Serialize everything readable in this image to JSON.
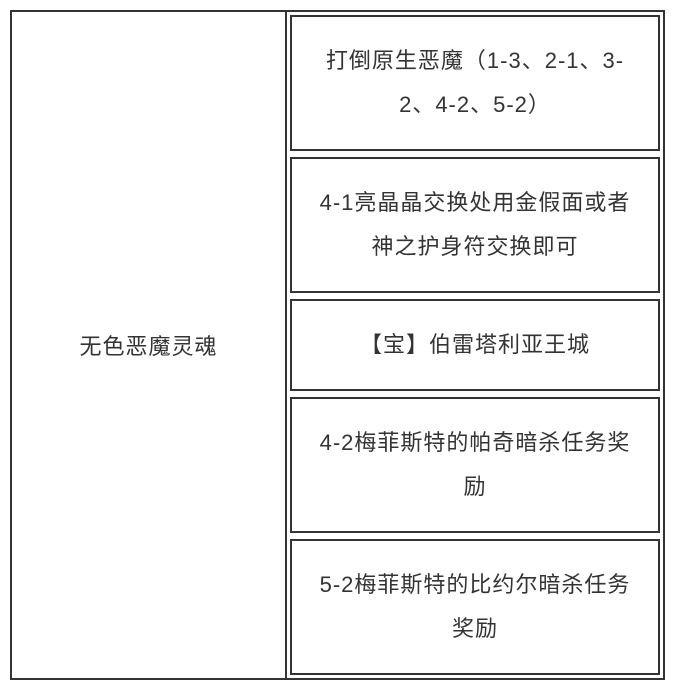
{
  "table": {
    "leftLabel": "无色恶魔灵魂",
    "rightItems": [
      "打倒原生恶魔（1-3、2-1、3-2、4-2、5-2）",
      "4-1亮晶晶交换处用金假面或者神之护身符交换即可",
      "【宝】伯雷塔利亚王城",
      "4-2梅菲斯特的帕奇暗杀任务奖励",
      "5-2梅菲斯特的比约尔暗杀任务奖励"
    ],
    "colors": {
      "border": "#333333",
      "text": "#333333",
      "background": "#ffffff"
    },
    "fontSize": 22
  }
}
